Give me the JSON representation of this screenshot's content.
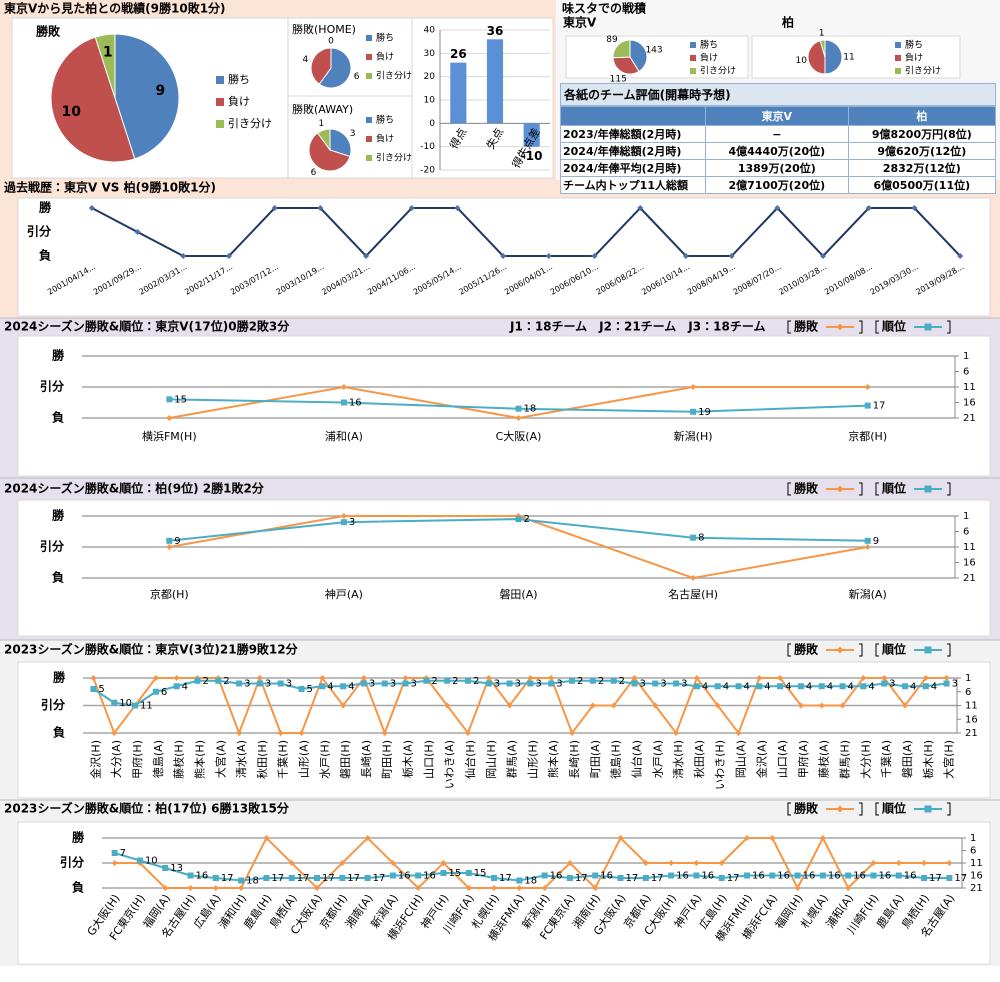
{
  "panels": {
    "record": "東京Vから見た柏との戦績(9勝10敗1分)",
    "stadium": "味スタでの戦積"
  },
  "table": {
    "title": "各紙のチーム評価(開幕時予想)",
    "header": [
      "東京V",
      "柏"
    ],
    "rows": [
      [
        "2023/年俸総額(2月時)",
        "−",
        "9億8200万円(8位)"
      ],
      [
        "2024/年俸総額(2月時)",
        "4億4440万(20位)",
        "9億620万(12位)"
      ],
      [
        "2024/年俸平均(2月時)",
        "1389万(20位)",
        "2832万(12位)"
      ],
      [
        "チーム内トップ11人総額",
        "2億7100万(20位)",
        "6億0500万(11位)"
      ]
    ]
  },
  "chart_data": [
    {
      "type": "pie",
      "title": "勝敗",
      "categories": [
        "勝ち",
        "負け",
        "引き分け"
      ],
      "values": [
        9,
        10,
        1
      ],
      "colors": [
        "#4f81bd",
        "#c0504d",
        "#9bbb59"
      ]
    },
    {
      "type": "pie",
      "title": "勝敗(HOME)",
      "categories": [
        "勝ち",
        "負け",
        "引き分け"
      ],
      "values": [
        6,
        4,
        0
      ],
      "colors": [
        "#4f81bd",
        "#c0504d",
        "#9bbb59"
      ]
    },
    {
      "type": "pie",
      "title": "勝敗(AWAY)",
      "categories": [
        "勝ち",
        "負け",
        "引き分け"
      ],
      "values": [
        3,
        6,
        1
      ],
      "colors": [
        "#4f81bd",
        "#c0504d",
        "#9bbb59"
      ]
    },
    {
      "type": "bar",
      "categories": [
        "得点",
        "失点",
        "得失点差"
      ],
      "values": [
        26,
        36,
        -10
      ],
      "color": "#5b8fd6",
      "ylim": [
        -20,
        40
      ],
      "yticks": [
        -20,
        -10,
        0,
        10,
        20,
        30,
        40
      ],
      "grid": true
    },
    {
      "type": "pie",
      "title": "東京V",
      "categories": [
        "勝ち",
        "負け",
        "引き分け"
      ],
      "values": [
        143,
        115,
        89
      ],
      "colors": [
        "#4f81bd",
        "#c0504d",
        "#9bbb59"
      ]
    },
    {
      "type": "pie",
      "title": "柏",
      "categories": [
        "勝ち",
        "負け",
        "引き分け"
      ],
      "values": [
        11,
        10,
        1
      ],
      "colors": [
        "#4f81bd",
        "#c0504d",
        "#9bbb59"
      ]
    },
    {
      "type": "line",
      "title": "過去戦歴：東京V VS 柏(9勝10敗1分)",
      "categories": [
        "2001/04/14...",
        "2001/09/29...",
        "2002/03/31...",
        "2002/11/17...",
        "2003/07/12...",
        "2003/10/19...",
        "2004/03/21...",
        "2004/11/06...",
        "2005/05/14...",
        "2005/11/26...",
        "2006/04/01...",
        "2006/06/10...",
        "2006/08/22...",
        "2006/10/14...",
        "2008/04/19...",
        "2008/07/20...",
        "2010/03/28...",
        "2010/08/08...",
        "2019/03/30...",
        "2019/09/28..."
      ],
      "series": [
        {
          "color": "#1f3864",
          "marker": "diamond",
          "values": [
            1,
            0,
            -1,
            -1,
            1,
            1,
            -1,
            1,
            1,
            -1,
            -1,
            -1,
            1,
            -1,
            -1,
            1,
            -1,
            1,
            1,
            -1
          ]
        }
      ],
      "ylim": [
        -1,
        1
      ],
      "yticks": [
        {
          "value": -1,
          "label": "負"
        },
        {
          "value": 0,
          "label": "引分"
        },
        {
          "value": 1,
          "label": "勝"
        }
      ],
      "grid": false
    },
    {
      "type": "line",
      "title": "2024シーズン勝敗&順位：東京V(17位)0勝2敗3分",
      "annotation": "J1：18チーム　J2：21チーム　J3：18チーム",
      "categories": [
        "横浜FM(H)",
        "浦和(A)",
        "C大阪(A)",
        "新潟(H)",
        "京都(H)"
      ],
      "series": [
        {
          "name": "勝敗",
          "color": "#f79646",
          "marker": "diamond",
          "values": [
            -1,
            0,
            -1,
            0,
            0
          ]
        },
        {
          "name": "順位",
          "color": "#4bacc6",
          "marker": "square",
          "axis": "y2",
          "labels": true,
          "values": [
            15,
            16,
            18,
            19,
            17
          ]
        }
      ],
      "ylim": [
        -1,
        1
      ],
      "yticks": [
        {
          "value": -1,
          "label": "負"
        },
        {
          "value": 0,
          "label": "引分"
        },
        {
          "value": 1,
          "label": "勝"
        }
      ],
      "y2lim": [
        21,
        1
      ],
      "y2ticks": [
        1,
        6,
        11,
        16,
        21
      ],
      "grid": true,
      "legend": "top-right"
    },
    {
      "type": "line",
      "title": "2024シーズン勝敗&順位：柏(9位) 2勝1敗2分",
      "categories": [
        "京都(H)",
        "神戸(A)",
        "磐田(A)",
        "名古屋(H)",
        "新潟(A)"
      ],
      "series": [
        {
          "name": "勝敗",
          "color": "#f79646",
          "marker": "diamond",
          "values": [
            0,
            1,
            1,
            -1,
            0
          ]
        },
        {
          "name": "順位",
          "color": "#4bacc6",
          "marker": "square",
          "axis": "y2",
          "labels": true,
          "values": [
            9,
            3,
            2,
            8,
            9
          ]
        }
      ],
      "ylim": [
        -1,
        1
      ],
      "yticks": [
        {
          "value": -1,
          "label": "負"
        },
        {
          "value": 0,
          "label": "引分"
        },
        {
          "value": 1,
          "label": "勝"
        }
      ],
      "y2lim": [
        21,
        1
      ],
      "y2ticks": [
        1,
        6,
        11,
        16,
        21
      ],
      "grid": true,
      "legend": "top-right"
    },
    {
      "type": "line",
      "title": "2023シーズン勝敗&順位：東京V(3位)21勝9敗12分",
      "categories": [
        "金沢(H)",
        "大分(A)",
        "甲府(H)",
        "徳島(A)",
        "藤枝(H)",
        "熊本(H)",
        "大宮(A)",
        "清水(A)",
        "秋田(H)",
        "千葉(H)",
        "山形(A)",
        "水戸(H)",
        "磐田(H)",
        "長崎(A)",
        "町田(H)",
        "栃木(A)",
        "山口(H)",
        "いわき(A)",
        "仙台(H)",
        "岡山(H)",
        "群馬(A)",
        "山形(H)",
        "熊本(A)",
        "長崎(H)",
        "町田(A)",
        "徳島(H)",
        "仙台(A)",
        "水戸(A)",
        "清水(H)",
        "秋田(A)",
        "いわき(H)",
        "岡山(A)",
        "金沢(A)",
        "山口(A)",
        "甲府(A)",
        "藤枝(A)",
        "群馬(H)",
        "大分(H)",
        "千葉(A)",
        "磐田(A)",
        "栃木(H)",
        "大宮(H)"
      ],
      "series": [
        {
          "name": "勝敗",
          "color": "#f79646",
          "marker": "diamond",
          "values": [
            1,
            -1,
            0,
            1,
            1,
            1,
            1,
            -1,
            1,
            -1,
            -1,
            1,
            0,
            1,
            -1,
            1,
            1,
            0,
            -1,
            1,
            0,
            1,
            1,
            -1,
            0,
            0,
            1,
            0,
            -1,
            1,
            0,
            -1,
            1,
            1,
            0,
            0,
            0,
            1,
            1,
            0,
            1,
            1
          ]
        },
        {
          "name": "順位",
          "color": "#4bacc6",
          "marker": "square",
          "axis": "y2",
          "labels": true,
          "values": [
            5,
            10,
            11,
            6,
            4,
            2,
            2,
            3,
            3,
            3,
            5,
            4,
            4,
            3,
            3,
            3,
            2,
            2,
            2,
            3,
            3,
            3,
            3,
            2,
            2,
            2,
            3,
            3,
            3,
            4,
            4,
            4,
            4,
            4,
            4,
            4,
            4,
            4,
            3,
            4,
            4,
            3
          ]
        }
      ],
      "ylim": [
        -1,
        1
      ],
      "yticks": [
        {
          "value": -1,
          "label": "負"
        },
        {
          "value": 0,
          "label": "引分"
        },
        {
          "value": 1,
          "label": "勝"
        }
      ],
      "y2lim": [
        21,
        1
      ],
      "y2ticks": [
        1,
        6,
        11,
        16,
        21
      ],
      "grid": true,
      "legend": "top-right"
    },
    {
      "type": "line",
      "title": "2023シーズン勝敗&順位：柏(17位) 6勝13敗15分",
      "categories": [
        "G大阪(H)",
        "FC東京(H)",
        "福岡(A)",
        "名古屋(H)",
        "広島(A)",
        "浦和(H)",
        "鹿島(H)",
        "鳥栖(A)",
        "C大阪(A)",
        "京都(H)",
        "湘南(A)",
        "新潟(A)",
        "横浜FC(H)",
        "神戸(H)",
        "川崎F(A)",
        "札幌(H)",
        "横浜FM(A)",
        "新潟(H)",
        "FC東京(A)",
        "湘南(H)",
        "G大阪(A)",
        "京都(A)",
        "C大阪(H)",
        "神戸(A)",
        "広島(H)",
        "横浜FM(H)",
        "横浜FC(A)",
        "福岡(H)",
        "札幌(A)",
        "浦和(A)",
        "川崎F(H)",
        "鹿島(A)",
        "鳥栖(H)",
        "名古屋(A)"
      ],
      "series": [
        {
          "name": "勝敗",
          "color": "#f79646",
          "marker": "diamond",
          "values": [
            0,
            0,
            -1,
            -1,
            -1,
            -1,
            1,
            0,
            -1,
            0,
            1,
            0,
            -1,
            0,
            -1,
            -1,
            -1,
            -1,
            0,
            -1,
            1,
            0,
            0,
            0,
            0,
            1,
            1,
            -1,
            1,
            -1,
            0,
            0,
            0,
            0
          ]
        },
        {
          "name": "順位",
          "color": "#4bacc6",
          "marker": "square",
          "axis": "y2",
          "labels": true,
          "values": [
            7,
            10,
            13,
            16,
            17,
            18,
            17,
            17,
            17,
            17,
            17,
            16,
            16,
            15,
            15,
            17,
            18,
            16,
            17,
            16,
            17,
            17,
            16,
            16,
            17,
            16,
            16,
            16,
            16,
            16,
            16,
            16,
            17,
            17
          ]
        }
      ],
      "ylim": [
        -1,
        1
      ],
      "yticks": [
        {
          "value": -1,
          "label": "負"
        },
        {
          "value": 0,
          "label": "引分"
        },
        {
          "value": 1,
          "label": "勝"
        }
      ],
      "y2lim": [
        21,
        1
      ],
      "y2ticks": [
        1,
        6,
        11,
        16,
        21
      ],
      "grid": true,
      "legend": "top-right"
    }
  ]
}
